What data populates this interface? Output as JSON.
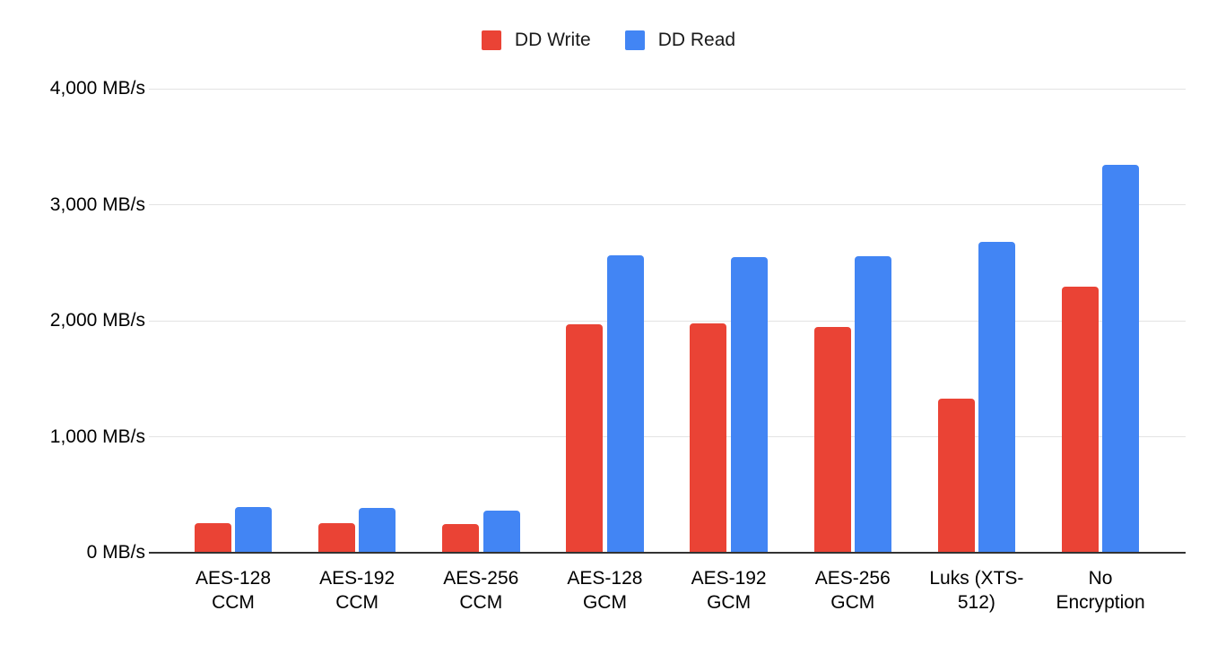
{
  "colors": {
    "background": "#ffffff",
    "gridline": "#e3e3e3",
    "axis_line": "#333333",
    "label_text": "#000000",
    "series_write": "#EA4335",
    "series_read": "#4285F4"
  },
  "legend": {
    "items": [
      {
        "label": "DD Write",
        "color": "#EA4335"
      },
      {
        "label": "DD Read",
        "color": "#4285F4"
      }
    ]
  },
  "chart_data": {
    "type": "bar",
    "title": "",
    "xlabel": "",
    "ylabel": "",
    "categories": [
      "AES-128 CCM",
      "AES-192 CCM",
      "AES-256 CCM",
      "AES-128 GCM",
      "AES-192 GCM",
      "AES-256 GCM",
      "Luks (XTS-512)",
      "No Encryption"
    ],
    "category_label_lines": [
      [
        "AES-128",
        "CCM"
      ],
      [
        "AES-192",
        "CCM"
      ],
      [
        "AES-256",
        "CCM"
      ],
      [
        "AES-128",
        "GCM"
      ],
      [
        "AES-192",
        "GCM"
      ],
      [
        "AES-256",
        "GCM"
      ],
      [
        "Luks (XTS-",
        "512)"
      ],
      [
        "No",
        "Encryption"
      ]
    ],
    "series": [
      {
        "name": "DD Write",
        "color": "#EA4335",
        "values": [
          255,
          252,
          248,
          1970,
          1975,
          1945,
          1330,
          2290
        ]
      },
      {
        "name": "DD Read",
        "color": "#4285F4",
        "values": [
          390,
          383,
          365,
          2560,
          2545,
          2555,
          2680,
          3340
        ]
      }
    ],
    "ylim": [
      0,
      4000
    ],
    "ytick_step": 1000,
    "ytick_labels": [
      "0 MB/s",
      "1,000 MB/s",
      "2,000 MB/s",
      "3,000 MB/s",
      "4,000 MB/s"
    ],
    "yunit": "MB/s",
    "grid": true,
    "legend_position": "top"
  }
}
